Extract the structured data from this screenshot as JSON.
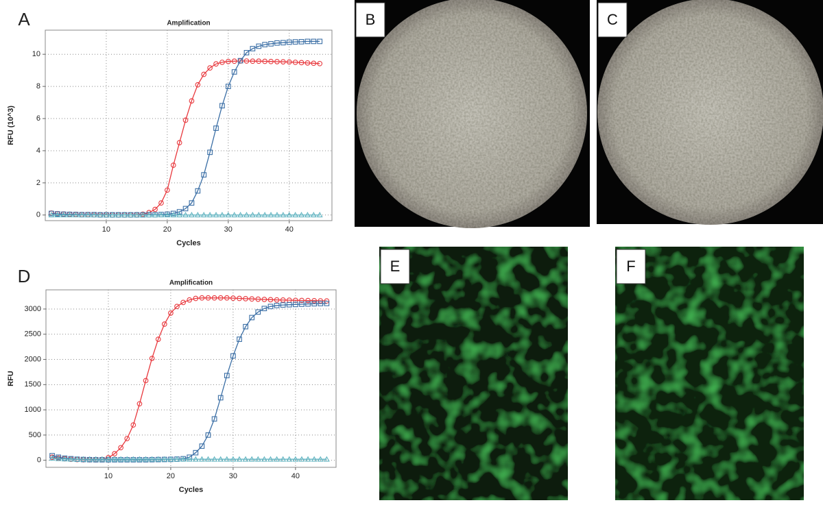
{
  "chart_data": [
    {
      "type": "line",
      "panel_label": "A",
      "title": "Amplification",
      "x_label": "Cycles",
      "y_label": "RFU (10^3)",
      "x": [
        1,
        2,
        3,
        4,
        5,
        6,
        7,
        8,
        9,
        10,
        11,
        12,
        13,
        14,
        15,
        16,
        17,
        18,
        19,
        20,
        21,
        22,
        23,
        24,
        25,
        26,
        27,
        28,
        29,
        30,
        31,
        32,
        33,
        34,
        35,
        36,
        37,
        38,
        39,
        40,
        41,
        42,
        43,
        44,
        45
      ],
      "xlim": [
        0,
        47
      ],
      "xticks": [
        10,
        20,
        30,
        40
      ],
      "ylim": [
        -0.35,
        11.5
      ],
      "yticks": [
        0,
        2,
        4,
        6,
        8,
        10
      ],
      "grid": true,
      "series": [
        {
          "color": "#e8383d",
          "marker": "circle",
          "values": [
            0.12,
            0.08,
            0.06,
            0.05,
            0.04,
            0.03,
            0.03,
            0.02,
            0.02,
            0.02,
            0.01,
            0.01,
            0.01,
            0.01,
            0.02,
            0.05,
            0.15,
            0.35,
            0.75,
            1.55,
            3.1,
            4.5,
            5.9,
            7.1,
            8.1,
            8.75,
            9.15,
            9.4,
            9.5,
            9.55,
            9.57,
            9.58,
            9.58,
            9.57,
            9.57,
            9.56,
            9.55,
            9.54,
            9.53,
            9.52,
            9.5,
            9.48,
            9.46,
            9.44,
            9.42
          ]
        },
        {
          "color": "#3a6ea5",
          "marker": "square",
          "values": [
            0.1,
            0.07,
            0.05,
            0.04,
            0.03,
            0.02,
            0.02,
            0.02,
            0.01,
            0.01,
            0.01,
            0.01,
            0.01,
            0.01,
            0.01,
            0.01,
            0.02,
            0.02,
            0.03,
            0.05,
            0.1,
            0.2,
            0.4,
            0.75,
            1.5,
            2.5,
            3.9,
            5.4,
            6.8,
            8.0,
            8.9,
            9.6,
            10.1,
            10.35,
            10.5,
            10.6,
            10.65,
            10.7,
            10.72,
            10.75,
            10.77,
            10.78,
            10.8,
            10.8,
            10.8
          ]
        },
        {
          "color": "#5fb3c0",
          "marker": "triangle",
          "values": [
            0,
            0,
            0,
            0,
            0,
            0,
            0,
            0,
            0,
            0,
            0,
            0,
            0,
            0,
            0,
            0,
            0,
            0,
            0,
            0,
            0,
            0,
            0,
            0,
            0,
            0,
            0,
            0,
            0,
            0,
            0,
            0,
            0,
            0,
            0,
            0,
            0,
            0,
            0,
            0,
            0,
            0,
            0,
            0,
            0
          ]
        }
      ]
    },
    {
      "type": "line",
      "panel_label": "D",
      "title": "Amplification",
      "x_label": "Cycles",
      "y_label": "RFU",
      "x": [
        1,
        2,
        3,
        4,
        5,
        6,
        7,
        8,
        9,
        10,
        11,
        12,
        13,
        14,
        15,
        16,
        17,
        18,
        19,
        20,
        21,
        22,
        23,
        24,
        25,
        26,
        27,
        28,
        29,
        30,
        31,
        32,
        33,
        34,
        35,
        36,
        37,
        38,
        39,
        40,
        41,
        42,
        43,
        44,
        45
      ],
      "xlim": [
        0,
        46.5
      ],
      "xticks": [
        10,
        20,
        30,
        40
      ],
      "ylim": [
        -140,
        3380
      ],
      "yticks": [
        0,
        500,
        1000,
        1500,
        2000,
        2500,
        3000
      ],
      "grid": true,
      "series": [
        {
          "color": "#e8383d",
          "marker": "circle",
          "values": [
            60,
            40,
            30,
            20,
            15,
            10,
            10,
            10,
            15,
            50,
            130,
            250,
            430,
            700,
            1120,
            1580,
            2020,
            2400,
            2700,
            2920,
            3050,
            3130,
            3180,
            3210,
            3220,
            3220,
            3220,
            3220,
            3220,
            3215,
            3210,
            3205,
            3200,
            3195,
            3190,
            3185,
            3180,
            3178,
            3175,
            3172,
            3170,
            3168,
            3165,
            3162,
            3160
          ]
        },
        {
          "color": "#3a6ea5",
          "marker": "square",
          "values": [
            90,
            60,
            40,
            30,
            20,
            15,
            12,
            10,
            10,
            10,
            10,
            10,
            10,
            10,
            10,
            10,
            12,
            14,
            16,
            18,
            22,
            30,
            60,
            150,
            280,
            500,
            820,
            1240,
            1680,
            2070,
            2400,
            2650,
            2830,
            2940,
            3010,
            3050,
            3070,
            3080,
            3085,
            3090,
            3095,
            3100,
            3105,
            3108,
            3110
          ]
        },
        {
          "color": "#5fb3c0",
          "marker": "triangle",
          "values": [
            40,
            30,
            25,
            20,
            20,
            20,
            20,
            20,
            20,
            20,
            20,
            20,
            20,
            20,
            20,
            20,
            20,
            20,
            20,
            20,
            20,
            20,
            20,
            20,
            20,
            20,
            20,
            20,
            20,
            20,
            20,
            20,
            20,
            20,
            20,
            20,
            20,
            20,
            20,
            20,
            20,
            20,
            20,
            20,
            20
          ]
        }
      ]
    }
  ],
  "image_panels": [
    {
      "label": "B"
    },
    {
      "label": "C"
    },
    {
      "label": "E"
    },
    {
      "label": "F"
    }
  ]
}
